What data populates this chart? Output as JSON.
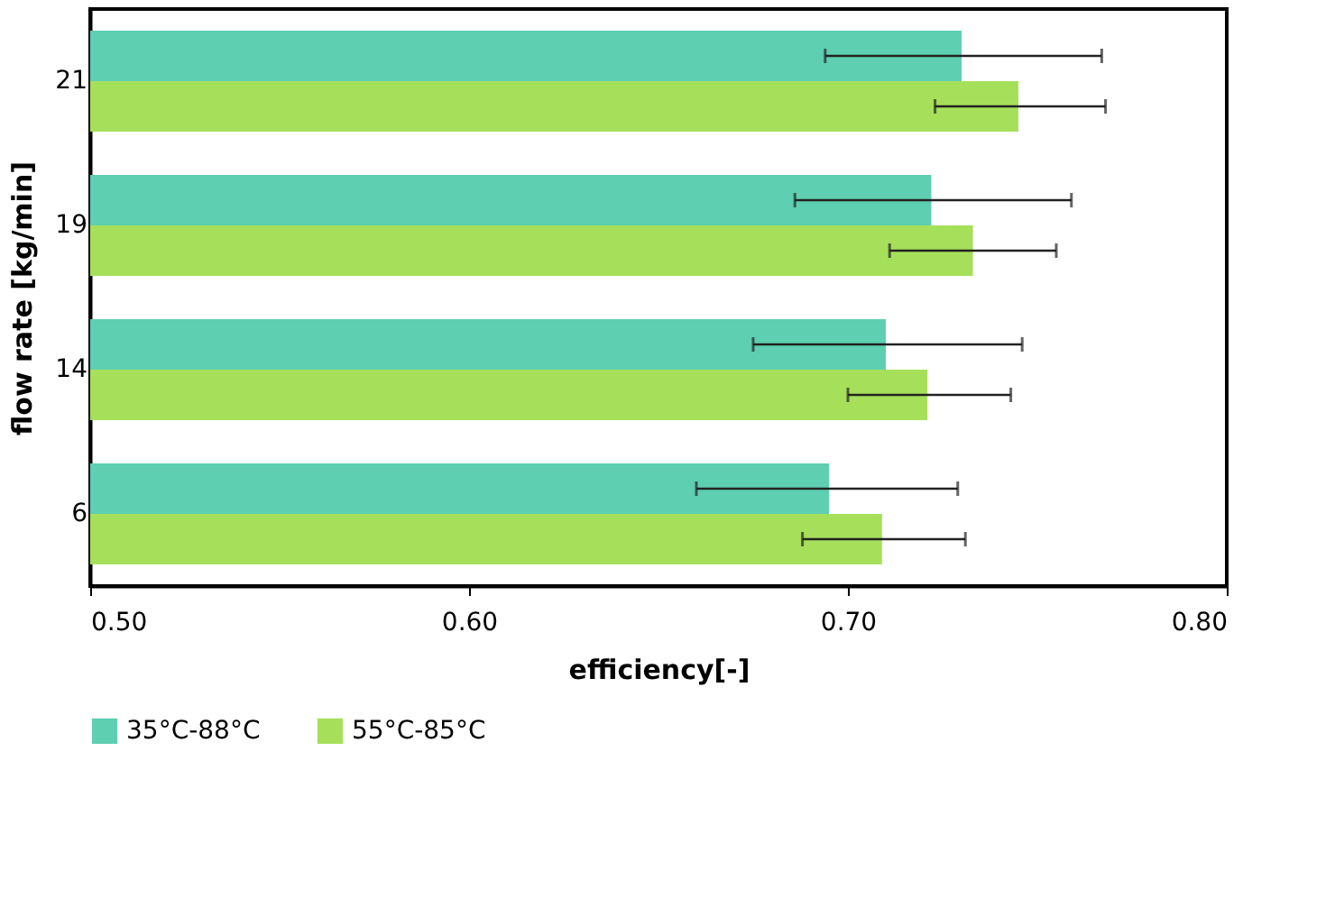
{
  "chart_data": {
    "type": "bar",
    "orientation": "horizontal",
    "xlabel": "efficiency[-]",
    "ylabel": "flow rate [kg/min]",
    "categories": [
      "21",
      "19",
      "14",
      "6"
    ],
    "series": [
      {
        "name": "35°C-88°C",
        "color": "#5ecfb1",
        "values": [
          0.73,
          0.722,
          0.71,
          0.695
        ],
        "errors": [
          [
            0.694,
            0.767
          ],
          [
            0.686,
            0.759
          ],
          [
            0.675,
            0.746
          ],
          [
            0.66,
            0.729
          ]
        ]
      },
      {
        "name": "55°C-85°C",
        "color": "#a6e05a",
        "values": [
          0.745,
          0.733,
          0.721,
          0.709
        ],
        "errors": [
          [
            0.723,
            0.768
          ],
          [
            0.711,
            0.755
          ],
          [
            0.7,
            0.743
          ],
          [
            0.688,
            0.731
          ]
        ]
      }
    ],
    "xlim": [
      0.5,
      0.8
    ],
    "xticks": [
      {
        "value": 0.5,
        "label": "0.50"
      },
      {
        "value": 0.6,
        "label": "0.60"
      },
      {
        "value": 0.7,
        "label": "0.70"
      },
      {
        "value": 0.8,
        "label": "0.80"
      }
    ],
    "grid": false,
    "legend": "bottom"
  }
}
